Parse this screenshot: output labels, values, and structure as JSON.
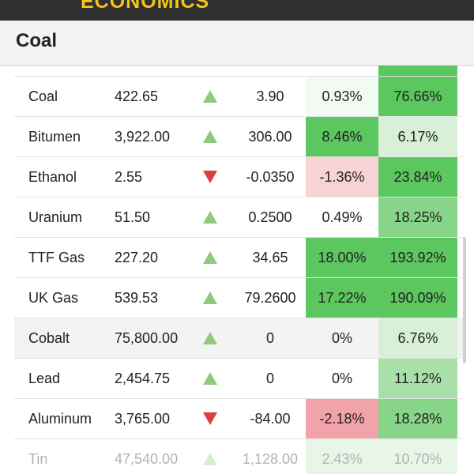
{
  "header": {
    "brand": "ECONOMICS"
  },
  "page": {
    "title": "Coal"
  },
  "colors": {
    "up_arrow": "#8fc97e",
    "down_arrow": "#d83f3f",
    "strong_green": "#5cc65f",
    "mid_green": "#88d489",
    "light_green": "#d8f0d8",
    "light_red": "#f7d3d6",
    "mid_red": "#f2a3aa"
  },
  "rows": [
    {
      "name": "Coal",
      "price": "422.65",
      "direction": "up",
      "change": "3.90",
      "pct": "0.93%",
      "ytd": "76.66%",
      "pct_color": "#f2fbf2",
      "ytd_color": "#5cc65f",
      "shaded": false
    },
    {
      "name": "Bitumen",
      "price": "3,922.00",
      "direction": "up",
      "change": "306.00",
      "pct": "8.46%",
      "ytd": "6.17%",
      "pct_color": "#5cc65f",
      "ytd_color": "#d8f0d8",
      "shaded": false
    },
    {
      "name": "Ethanol",
      "price": "2.55",
      "direction": "down",
      "change": "-0.0350",
      "pct": "-1.36%",
      "ytd": "23.84%",
      "pct_color": "#f7d3d6",
      "ytd_color": "#5cc65f",
      "shaded": false
    },
    {
      "name": "Uranium",
      "price": "51.50",
      "direction": "up",
      "change": "0.2500",
      "pct": "0.49%",
      "ytd": "18.25%",
      "pct_color": "#ffffff",
      "ytd_color": "#88d489",
      "shaded": false
    },
    {
      "name": "TTF Gas",
      "price": "227.20",
      "direction": "up",
      "change": "34.65",
      "pct": "18.00%",
      "ytd": "193.92%",
      "pct_color": "#5cc65f",
      "ytd_color": "#5cc65f",
      "shaded": false
    },
    {
      "name": "UK Gas",
      "price": "539.53",
      "direction": "up",
      "change": "79.2600",
      "pct": "17.22%",
      "ytd": "190.09%",
      "pct_color": "#5cc65f",
      "ytd_color": "#5cc65f",
      "shaded": false
    },
    {
      "name": "Cobalt",
      "price": "75,800.00",
      "direction": "up",
      "change": "0",
      "pct": "0%",
      "ytd": "6.76%",
      "pct_color": "#f3f3f3",
      "ytd_color": "#d8f0d8",
      "shaded": true
    },
    {
      "name": "Lead",
      "price": "2,454.75",
      "direction": "up",
      "change": "0",
      "pct": "0%",
      "ytd": "11.12%",
      "pct_color": "#ffffff",
      "ytd_color": "#a9dfa9",
      "shaded": false
    },
    {
      "name": "Aluminum",
      "price": "3,765.00",
      "direction": "down",
      "change": "-84.00",
      "pct": "-2.18%",
      "ytd": "18.28%",
      "pct_color": "#f2a3aa",
      "ytd_color": "#88d489",
      "shaded": false
    },
    {
      "name": "Tin",
      "price": "47,540.00",
      "direction": "up",
      "change": "1,128.00",
      "pct": "2.43%",
      "ytd": "10.70%",
      "pct_color": "#bfe8bf",
      "ytd_color": "#bfe8bf",
      "shaded": false
    }
  ]
}
